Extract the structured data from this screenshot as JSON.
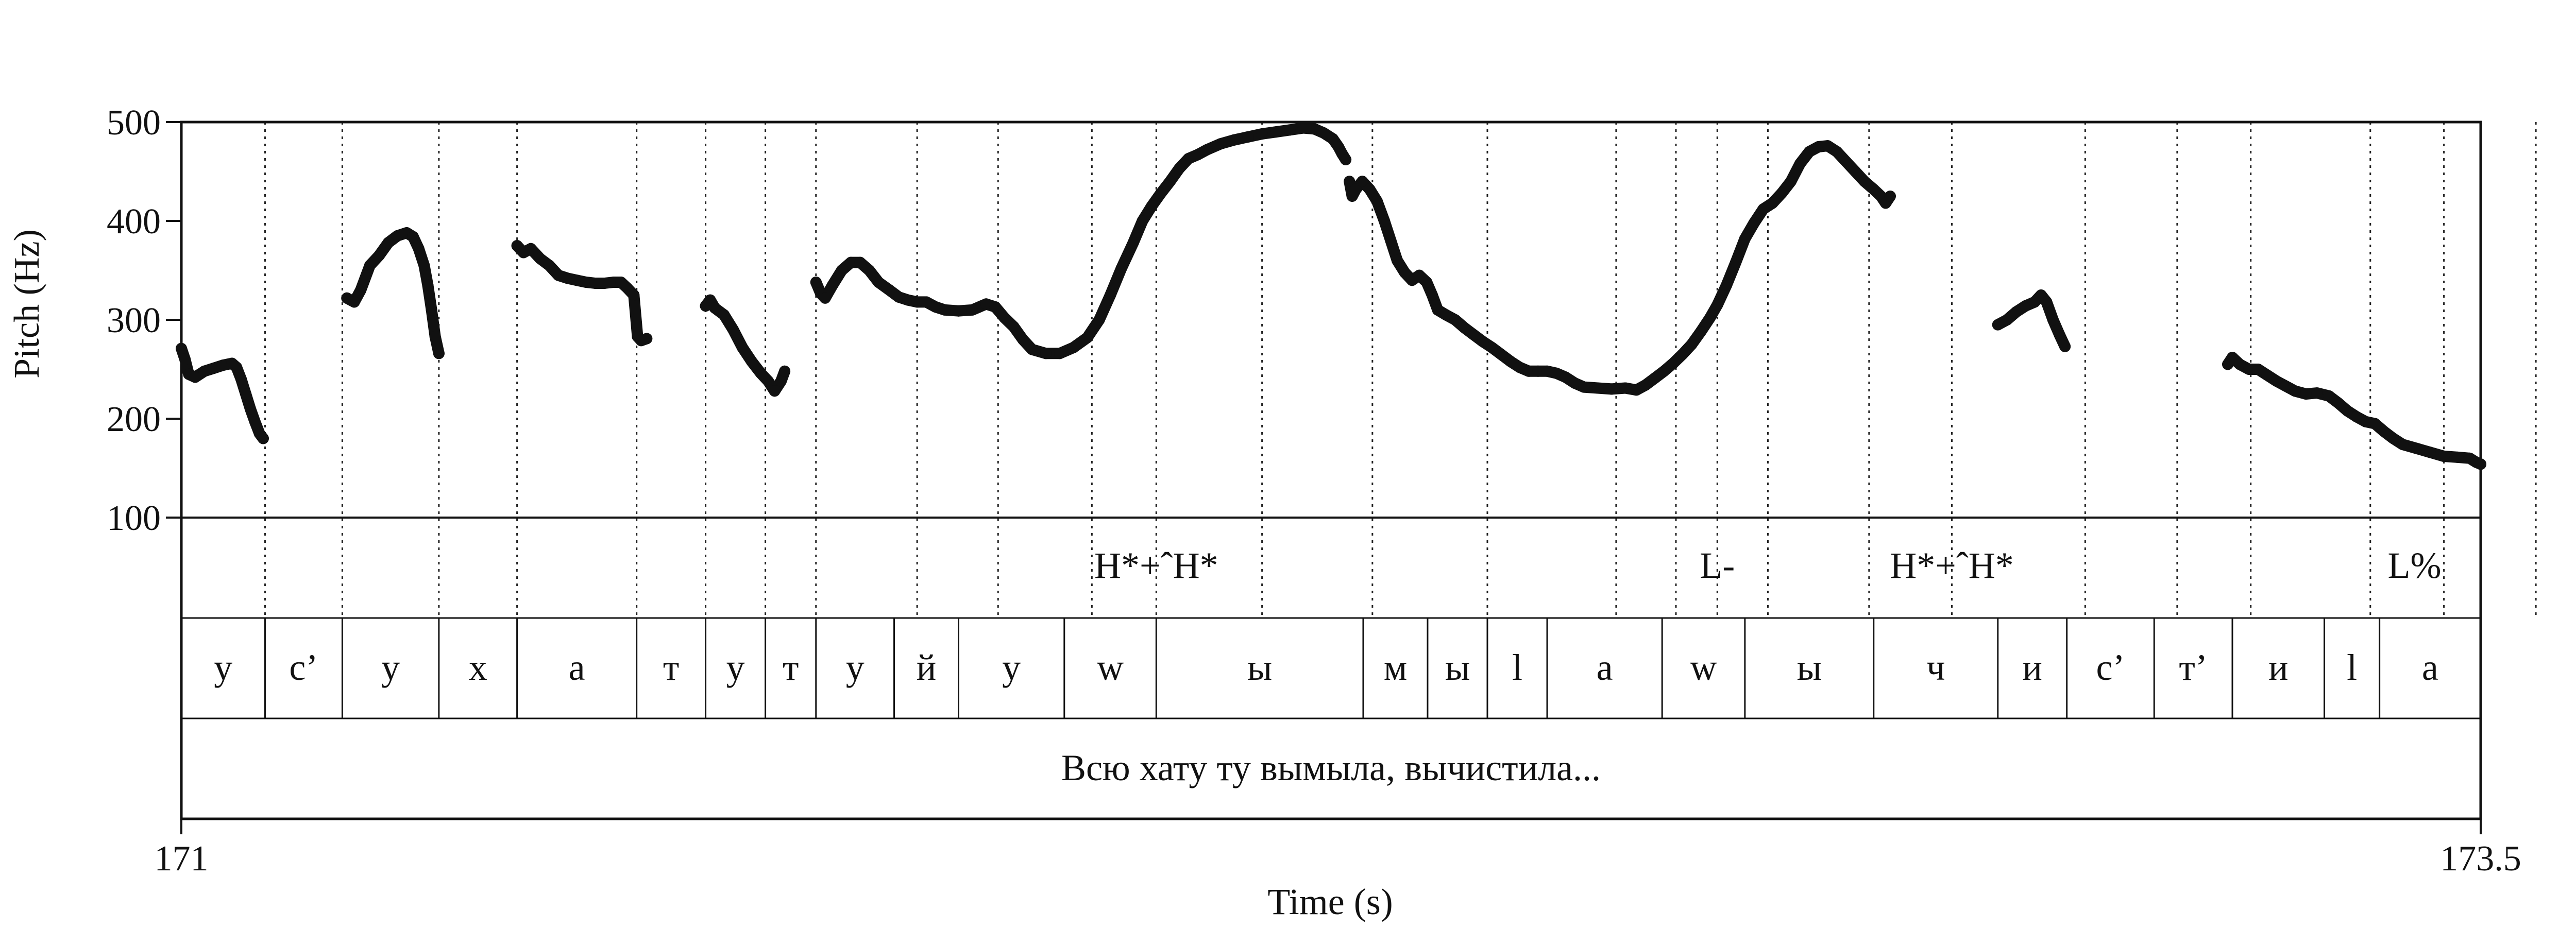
{
  "chart_data": {
    "type": "line",
    "xlabel": "Time (s)",
    "ylabel": "Pitch (Hz)",
    "xlim": [
      171,
      173.5
    ],
    "ylim": [
      100,
      500
    ],
    "x_tick_labels": [
      "171",
      "173.5"
    ],
    "y_ticks": [
      100,
      200,
      300,
      400,
      500
    ],
    "grid": false,
    "segment_boundaries": [
      171.091,
      171.175,
      171.28,
      171.365,
      171.495,
      171.57,
      171.635,
      171.69,
      171.8,
      171.888,
      171.99,
      172.06,
      172.175,
      172.295,
      172.42,
      172.56,
      172.625,
      172.67,
      172.725,
      172.835,
      172.925,
      173.07,
      173.17,
      173.25,
      173.38,
      173.46,
      173.56,
      173.622
    ],
    "tones": [
      {
        "label": "H*+ˆH*",
        "x": 172.06
      },
      {
        "label": "L-",
        "x": 172.67
      },
      {
        "label": "H*+ˆH*",
        "x": 172.925
      },
      {
        "label": "L%",
        "x": 173.428
      }
    ],
    "segments": [
      {
        "label": "у",
        "start": 171.0,
        "end": 171.091
      },
      {
        "label": "с’",
        "start": 171.091,
        "end": 171.175
      },
      {
        "label": "у",
        "start": 171.175,
        "end": 171.28
      },
      {
        "label": "х",
        "start": 171.28,
        "end": 171.365
      },
      {
        "label": "а",
        "start": 171.365,
        "end": 171.495
      },
      {
        "label": "т",
        "start": 171.495,
        "end": 171.57
      },
      {
        "label": "у",
        "start": 171.57,
        "end": 171.635
      },
      {
        "label": "т",
        "start": 171.635,
        "end": 171.69
      },
      {
        "label": "у",
        "start": 171.69,
        "end": 171.775
      },
      {
        "label": "й",
        "start": 171.775,
        "end": 171.845
      },
      {
        "label": "у",
        "start": 171.845,
        "end": 171.96
      },
      {
        "label": "w",
        "start": 171.96,
        "end": 172.06
      },
      {
        "label": "ы",
        "start": 172.06,
        "end": 172.285
      },
      {
        "label": "м",
        "start": 172.285,
        "end": 172.355
      },
      {
        "label": "ы",
        "start": 172.355,
        "end": 172.42
      },
      {
        "label": "l",
        "start": 172.42,
        "end": 172.485
      },
      {
        "label": "а",
        "start": 172.485,
        "end": 172.61
      },
      {
        "label": "w",
        "start": 172.61,
        "end": 172.7
      },
      {
        "label": "ы",
        "start": 172.7,
        "end": 172.84
      },
      {
        "label": "ч",
        "start": 172.84,
        "end": 172.975
      },
      {
        "label": "и",
        "start": 172.975,
        "end": 173.05
      },
      {
        "label": "с’",
        "start": 173.05,
        "end": 173.145
      },
      {
        "label": "т’",
        "start": 173.145,
        "end": 173.23
      },
      {
        "label": "и",
        "start": 173.23,
        "end": 173.33
      },
      {
        "label": "l",
        "start": 173.33,
        "end": 173.39
      },
      {
        "label": "а",
        "start": 173.39,
        "end": 173.5
      }
    ],
    "sentence": "Всю хату ту вымыла, вычистила...",
    "series": [
      {
        "points": [
          [
            171.0,
            271
          ],
          [
            171.004,
            260
          ],
          [
            171.008,
            245
          ],
          [
            171.015,
            242
          ],
          [
            171.025,
            248
          ],
          [
            171.035,
            251
          ],
          [
            171.045,
            254
          ],
          [
            171.055,
            256
          ],
          [
            171.06,
            252
          ],
          [
            171.065,
            240
          ],
          [
            171.07,
            225
          ],
          [
            171.075,
            210
          ],
          [
            171.08,
            197
          ],
          [
            171.085,
            185
          ],
          [
            171.089,
            180
          ]
        ]
      },
      {
        "points": [
          [
            171.18,
            322
          ],
          [
            171.188,
            318
          ],
          [
            171.195,
            330
          ],
          [
            171.205,
            355
          ],
          [
            171.215,
            365
          ],
          [
            171.225,
            378
          ],
          [
            171.235,
            385
          ],
          [
            171.245,
            388
          ],
          [
            171.252,
            384
          ],
          [
            171.258,
            372
          ],
          [
            171.264,
            355
          ],
          [
            171.268,
            335
          ],
          [
            171.272,
            310
          ],
          [
            171.276,
            283
          ],
          [
            171.28,
            266
          ]
        ]
      },
      {
        "points": [
          [
            171.365,
            375
          ],
          [
            171.372,
            368
          ],
          [
            171.38,
            372
          ],
          [
            171.39,
            362
          ],
          [
            171.4,
            355
          ],
          [
            171.41,
            345
          ],
          [
            171.42,
            342
          ],
          [
            171.43,
            340
          ],
          [
            171.44,
            338
          ],
          [
            171.45,
            337
          ],
          [
            171.46,
            337
          ],
          [
            171.47,
            338
          ],
          [
            171.478,
            338
          ],
          [
            171.485,
            332
          ],
          [
            171.492,
            325
          ],
          [
            171.496,
            283
          ],
          [
            171.5,
            279
          ],
          [
            171.506,
            281
          ]
        ]
      },
      {
        "points": [
          [
            171.57,
            314
          ],
          [
            171.575,
            320
          ],
          [
            171.58,
            312
          ],
          [
            171.59,
            305
          ],
          [
            171.6,
            290
          ],
          [
            171.61,
            272
          ],
          [
            171.62,
            258
          ],
          [
            171.63,
            246
          ],
          [
            171.638,
            238
          ],
          [
            171.645,
            228
          ],
          [
            171.652,
            238
          ],
          [
            171.656,
            248
          ]
        ]
      },
      {
        "points": [
          [
            171.69,
            338
          ],
          [
            171.695,
            327
          ],
          [
            171.7,
            322
          ],
          [
            171.708,
            335
          ],
          [
            171.718,
            350
          ],
          [
            171.728,
            358
          ],
          [
            171.738,
            358
          ],
          [
            171.748,
            350
          ],
          [
            171.758,
            338
          ],
          [
            171.77,
            330
          ],
          [
            171.78,
            323
          ],
          [
            171.79,
            320
          ],
          [
            171.8,
            318
          ],
          [
            171.81,
            318
          ],
          [
            171.82,
            313
          ],
          [
            171.83,
            310
          ],
          [
            171.845,
            309
          ],
          [
            171.86,
            310
          ],
          [
            171.875,
            316
          ],
          [
            171.885,
            313
          ],
          [
            171.895,
            302
          ],
          [
            171.905,
            293
          ],
          [
            171.915,
            280
          ],
          [
            171.925,
            270
          ],
          [
            171.94,
            266
          ],
          [
            171.955,
            266
          ],
          [
            171.97,
            272
          ],
          [
            171.985,
            282
          ],
          [
            171.998,
            300
          ],
          [
            172.01,
            325
          ],
          [
            172.022,
            352
          ],
          [
            172.035,
            378
          ],
          [
            172.045,
            400
          ],
          [
            172.055,
            415
          ],
          [
            172.065,
            428
          ],
          [
            172.075,
            440
          ],
          [
            172.085,
            453
          ],
          [
            172.095,
            463
          ],
          [
            172.105,
            467
          ],
          [
            172.115,
            472
          ],
          [
            172.13,
            478
          ],
          [
            172.145,
            482
          ],
          [
            172.16,
            485
          ],
          [
            172.175,
            488
          ],
          [
            172.19,
            490
          ],
          [
            172.205,
            492
          ],
          [
            172.22,
            494
          ],
          [
            172.232,
            493
          ],
          [
            172.242,
            489
          ],
          [
            172.252,
            483
          ],
          [
            172.258,
            475
          ],
          [
            172.262,
            468
          ],
          [
            172.266,
            462
          ]
        ]
      },
      {
        "points": [
          [
            172.27,
            440
          ],
          [
            172.273,
            425
          ],
          [
            172.277,
            432
          ],
          [
            172.284,
            440
          ],
          [
            172.292,
            432
          ],
          [
            172.3,
            420
          ],
          [
            172.308,
            400
          ],
          [
            172.315,
            380
          ],
          [
            172.322,
            360
          ],
          [
            172.33,
            348
          ],
          [
            172.338,
            340
          ],
          [
            172.346,
            345
          ],
          [
            172.354,
            338
          ],
          [
            172.36,
            325
          ],
          [
            172.366,
            310
          ],
          [
            172.375,
            305
          ],
          [
            172.385,
            300
          ],
          [
            172.395,
            292
          ],
          [
            172.405,
            285
          ],
          [
            172.415,
            278
          ],
          [
            172.425,
            272
          ],
          [
            172.435,
            265
          ],
          [
            172.445,
            258
          ],
          [
            172.455,
            252
          ],
          [
            172.465,
            248
          ],
          [
            172.475,
            248
          ],
          [
            172.485,
            248
          ],
          [
            172.495,
            246
          ],
          [
            172.505,
            242
          ],
          [
            172.515,
            236
          ],
          [
            172.525,
            232
          ],
          [
            172.54,
            231
          ],
          [
            172.555,
            230
          ],
          [
            172.57,
            231
          ],
          [
            172.582,
            229
          ],
          [
            172.592,
            234
          ],
          [
            172.602,
            241
          ],
          [
            172.612,
            248
          ],
          [
            172.622,
            256
          ],
          [
            172.632,
            265
          ],
          [
            172.642,
            275
          ],
          [
            172.652,
            288
          ],
          [
            172.662,
            302
          ],
          [
            172.67,
            315
          ],
          [
            172.68,
            335
          ],
          [
            172.69,
            358
          ],
          [
            172.7,
            382
          ],
          [
            172.71,
            398
          ],
          [
            172.72,
            412
          ],
          [
            172.73,
            418
          ],
          [
            172.74,
            428
          ],
          [
            172.75,
            440
          ],
          [
            172.76,
            458
          ],
          [
            172.77,
            470
          ],
          [
            172.78,
            475
          ],
          [
            172.79,
            476
          ],
          [
            172.8,
            470
          ],
          [
            172.81,
            460
          ],
          [
            172.82,
            450
          ],
          [
            172.83,
            440
          ],
          [
            172.84,
            432
          ],
          [
            172.848,
            425
          ],
          [
            172.853,
            418
          ],
          [
            172.858,
            425
          ]
        ]
      },
      {
        "points": [
          [
            172.975,
            295
          ],
          [
            172.985,
            300
          ],
          [
            172.995,
            308
          ],
          [
            173.005,
            314
          ],
          [
            173.015,
            318
          ],
          [
            173.022,
            325
          ],
          [
            173.028,
            318
          ],
          [
            173.035,
            300
          ],
          [
            173.042,
            285
          ],
          [
            173.048,
            273
          ]
        ]
      },
      {
        "points": [
          [
            173.225,
            255
          ],
          [
            173.23,
            262
          ],
          [
            173.238,
            255
          ],
          [
            173.248,
            250
          ],
          [
            173.258,
            250
          ],
          [
            173.268,
            244
          ],
          [
            173.278,
            238
          ],
          [
            173.288,
            233
          ],
          [
            173.298,
            228
          ],
          [
            173.31,
            225
          ],
          [
            173.322,
            226
          ],
          [
            173.335,
            223
          ],
          [
            173.345,
            216
          ],
          [
            173.355,
            208
          ],
          [
            173.365,
            202
          ],
          [
            173.375,
            197
          ],
          [
            173.385,
            195
          ],
          [
            173.395,
            187
          ],
          [
            173.405,
            180
          ],
          [
            173.415,
            174
          ],
          [
            173.43,
            170
          ],
          [
            173.445,
            166
          ],
          [
            173.46,
            162
          ],
          [
            173.475,
            161
          ],
          [
            173.488,
            160
          ],
          [
            173.495,
            156
          ],
          [
            173.5,
            154
          ]
        ]
      }
    ]
  }
}
